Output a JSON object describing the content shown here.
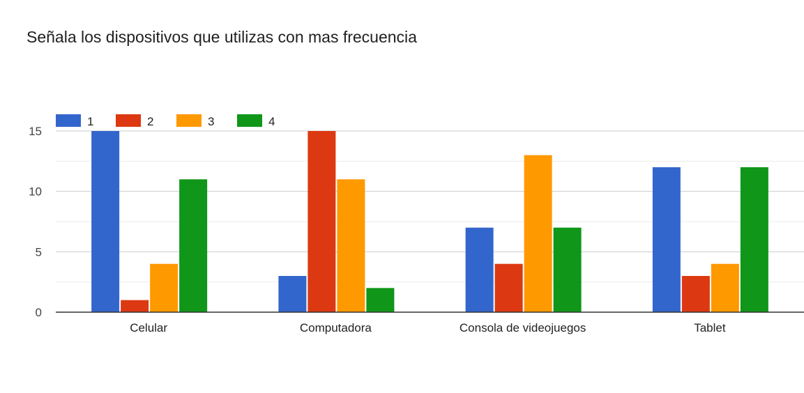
{
  "chart_data": {
    "type": "bar",
    "title": "Señala los dispositivos que utilizas con mas frecuencia",
    "xlabel": "",
    "ylabel": "",
    "categories": [
      "Celular",
      "Computadora",
      "Consola de videojuegos",
      "Tablet"
    ],
    "series": [
      {
        "name": "1",
        "color": "#3366cc",
        "values": [
          15,
          3,
          7,
          12
        ]
      },
      {
        "name": "2",
        "color": "#dc3912",
        "values": [
          1,
          15,
          4,
          3
        ]
      },
      {
        "name": "3",
        "color": "#ff9900",
        "values": [
          4,
          11,
          13,
          4
        ]
      },
      {
        "name": "4",
        "color": "#109618",
        "values": [
          11,
          2,
          7,
          12
        ]
      }
    ],
    "ylim": [
      0,
      15
    ],
    "yticks": [
      "0",
      "5",
      "10",
      "15"
    ],
    "grid": true,
    "legend_position": "top-left"
  }
}
